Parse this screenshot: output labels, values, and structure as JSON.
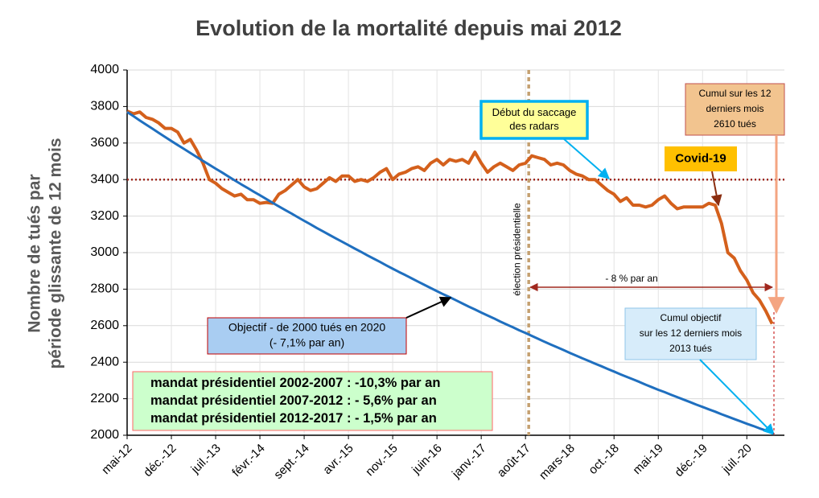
{
  "chart_data": {
    "type": "line",
    "title": "Evolution de la mortalité depuis mai 2012",
    "y_label": [
      "Nombre de tués par",
      "période  glissante de 12 mois"
    ],
    "categories": [
      "mai-12",
      null,
      null,
      null,
      null,
      null,
      null,
      "déc.-12",
      null,
      null,
      null,
      null,
      null,
      null,
      "juil.-13",
      null,
      null,
      null,
      null,
      null,
      null,
      "févr.-14",
      null,
      null,
      null,
      null,
      null,
      null,
      "sept.-14",
      null,
      null,
      null,
      null,
      null,
      null,
      "avr.-15",
      null,
      null,
      null,
      null,
      null,
      null,
      "nov.-15",
      null,
      null,
      null,
      null,
      null,
      null,
      "juin-16",
      null,
      null,
      null,
      null,
      null,
      null,
      "janv.-17",
      null,
      null,
      null,
      null,
      null,
      null,
      "août-17",
      null,
      null,
      null,
      null,
      null,
      null,
      "mars-18",
      null,
      null,
      null,
      null,
      null,
      null,
      "oct.-18",
      null,
      null,
      null,
      null,
      null,
      null,
      "mai-19",
      null,
      null,
      null,
      null,
      null,
      null,
      "déc.-19",
      null,
      null,
      null,
      null,
      null,
      null,
      "juil.-20",
      null,
      null,
      null,
      null
    ],
    "series": [
      {
        "color": "#d4601c",
        "values": [
          3775,
          3760,
          3770,
          3740,
          3730,
          3710,
          3680,
          3680,
          3660,
          3600,
          3620,
          3560,
          3490,
          3400,
          3380,
          3350,
          3330,
          3310,
          3320,
          3290,
          3290,
          3270,
          3275,
          3270,
          3320,
          3340,
          3370,
          3400,
          3360,
          3340,
          3350,
          3380,
          3410,
          3390,
          3420,
          3420,
          3390,
          3400,
          3390,
          3410,
          3440,
          3460,
          3400,
          3430,
          3440,
          3460,
          3470,
          3450,
          3490,
          3510,
          3480,
          3510,
          3500,
          3510,
          3490,
          3550,
          3490,
          3440,
          3470,
          3490,
          3470,
          3450,
          3480,
          3490,
          3530,
          3520,
          3510,
          3480,
          3490,
          3480,
          3450,
          3430,
          3420,
          3400,
          3400,
          3370,
          3340,
          3320,
          3280,
          3300,
          3260,
          3260,
          3250,
          3260,
          3290,
          3310,
          3270,
          3240,
          3250,
          3250,
          3250,
          3250,
          3270,
          3260,
          3160,
          3000,
          2970,
          2900,
          2850,
          2780,
          2740,
          2680,
          2610
        ]
      },
      {
        "color": "#1f6fbf",
        "values": [
          3770,
          3747,
          3724,
          3701,
          3679,
          3656,
          3633,
          3611,
          3589,
          3568,
          3546,
          3524,
          3502,
          3481,
          3460,
          3439,
          3417,
          3396,
          3375,
          3355,
          3334,
          3314,
          3294,
          3273,
          3253,
          3233,
          3214,
          3194,
          3174,
          3155,
          3135,
          3116,
          3097,
          3078,
          3060,
          3041,
          3022,
          3004,
          2985,
          2967,
          2949,
          2930,
          2912,
          2894,
          2877,
          2859,
          2841,
          2824,
          2806,
          2789,
          2772,
          2756,
          2739,
          2722,
          2705,
          2689,
          2672,
          2656,
          2640,
          2623,
          2607,
          2591,
          2575,
          2560,
          2544,
          2528,
          2512,
          2497,
          2482,
          2467,
          2451,
          2436,
          2421,
          2407,
          2392,
          2378,
          2363,
          2349,
          2334,
          2320,
          2306,
          2292,
          2277,
          2263,
          2249,
          2236,
          2222,
          2209,
          2195,
          2182,
          2168,
          2155,
          2142,
          2129,
          2115,
          2102,
          2089,
          2076,
          2063,
          2051,
          2038,
          2026,
          2013
        ]
      }
    ],
    "reference_line": 3400,
    "ylim": [
      2000,
      4000
    ],
    "yticks": [
      2000,
      2200,
      2400,
      2600,
      2800,
      3000,
      3200,
      3400,
      3600,
      3800,
      4000
    ],
    "grid": true,
    "annotations": [
      {
        "lines": [
          "Début du saccage",
          "des radars"
        ]
      },
      {
        "lines": [
          "Cumul sur les 12",
          "derniers mois",
          "2610 tués"
        ]
      },
      {
        "lines": [
          "Covid-19"
        ]
      },
      {
        "lines": [
          "Objectif - de 2000 tués en 2020",
          "(- 7,1% par an)"
        ]
      },
      {
        "lines": [
          "Cumul objectif",
          "sur les 12 derniers mois",
          "2013 tués"
        ]
      },
      {
        "lines": [
          "mandat présidentiel 2002-2007 : -10,3% par an",
          "mandat présidentiel 2007-2012 : - 5,6% par an",
          "mandat présidentiel 2012-2017 : - 1,5% par an"
        ]
      },
      {
        "lines": [
          "- 8 % par an"
        ]
      },
      {
        "lines": [
          "élection présidentielle"
        ]
      }
    ]
  }
}
